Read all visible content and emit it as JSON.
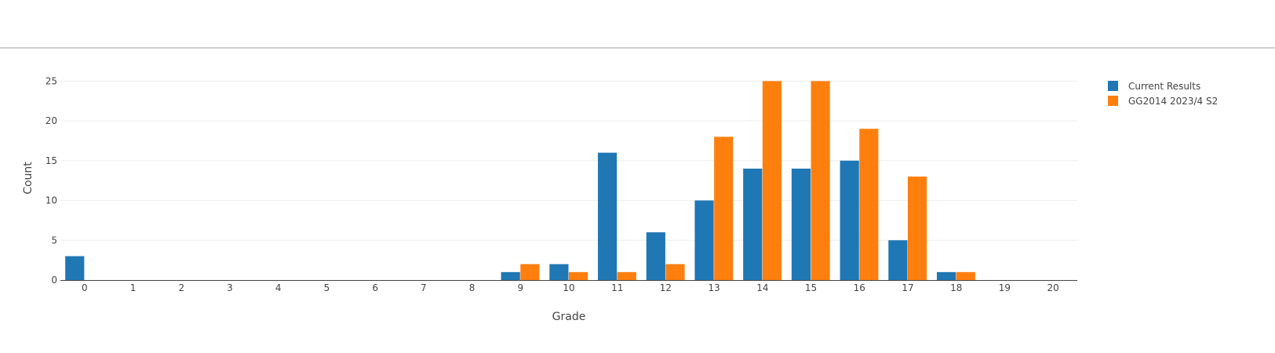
{
  "chart_data": {
    "type": "bar",
    "title": "",
    "xlabel": "Grade",
    "ylabel": "Count",
    "categories": [
      "0",
      "1",
      "2",
      "3",
      "4",
      "5",
      "6",
      "7",
      "8",
      "9",
      "10",
      "11",
      "12",
      "13",
      "14",
      "15",
      "16",
      "17",
      "18",
      "19",
      "20"
    ],
    "series": [
      {
        "name": "Current Results",
        "color": "#1f77b4",
        "values": [
          3,
          0,
          0,
          0,
          0,
          0,
          0,
          0,
          0,
          1,
          2,
          16,
          6,
          10,
          14,
          14,
          15,
          5,
          1,
          0,
          0
        ]
      },
      {
        "name": "GG2014 2023/4 S2",
        "color": "#ff7f0e",
        "values": [
          0,
          0,
          0,
          0,
          0,
          0,
          0,
          0,
          0,
          2,
          1,
          1,
          2,
          18,
          25,
          25,
          19,
          13,
          1,
          0,
          0
        ]
      }
    ],
    "yticks": [
      0,
      5,
      10,
      15,
      20,
      25
    ],
    "ylim": [
      0,
      27.3
    ],
    "grid": true,
    "legend_position": "top-right"
  }
}
